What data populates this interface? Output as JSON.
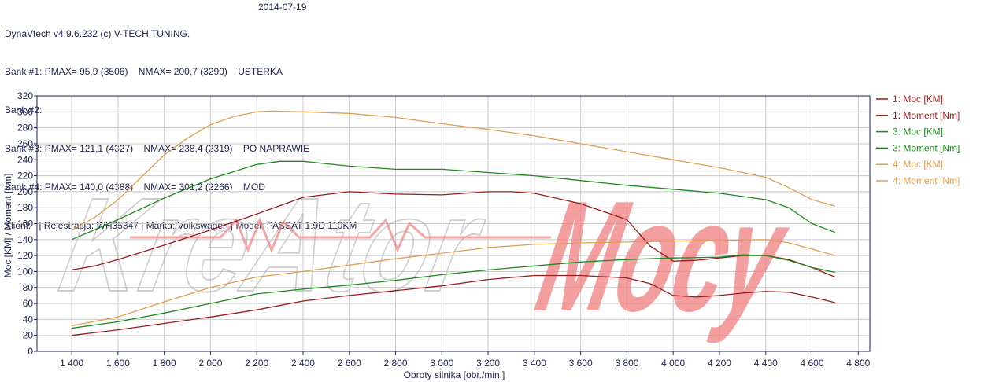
{
  "header": {
    "app": "DynaVtech v4.9.6.232 (c) V-TECH TUNING.",
    "date": "2014-07-19",
    "banks": [
      {
        "label": "Bank #1:",
        "pmax": "PMAX= 95,9 (3506)",
        "nmax": "NMAX= 200,7 (3290)",
        "note": "USTERKA"
      },
      {
        "label": "Bank #2:",
        "pmax": "",
        "nmax": "",
        "note": ""
      },
      {
        "label": "Bank #3:",
        "pmax": "PMAX= 121,1 (4327)",
        "nmax": "NMAX= 238,4 (2319)",
        "note": "PO NAPRAWIE"
      },
      {
        "label": "Bank #4:",
        "pmax": "PMAX= 140,0 (4388)",
        "nmax": "NMAX= 301,2 (2266)",
        "note": "MOD"
      }
    ],
    "client": "Klient:   | Rejestracja: WH35347 | Marka: Volkswagen | Model: PASSAT 1.9D 110KM"
  },
  "colors": {
    "bank1": "#9b1c1c",
    "bank3": "#1e8a1e",
    "bank4": "#e0a050",
    "grid": "#c8c8c8",
    "axis": "#1c2150",
    "watermark": "#f08080"
  },
  "watermark": "KreAtorMocy",
  "chart_data": {
    "type": "line",
    "xlabel": "Obroty silnika [obr./min.]",
    "ylabel": "Moc [KM] / Moment [Nm]",
    "xlim": [
      1250,
      4850
    ],
    "ylim": [
      0,
      320
    ],
    "xticks": [
      1400,
      1600,
      1800,
      2000,
      2200,
      2400,
      2600,
      2800,
      3000,
      3200,
      3400,
      3600,
      3800,
      4000,
      4200,
      4400,
      4600,
      4800
    ],
    "xtick_labels": [
      "1 400",
      "1 600",
      "1 800",
      "2 000",
      "2 200",
      "2 400",
      "2 600",
      "2 800",
      "3 000",
      "3 200",
      "3 400",
      "3 600",
      "3 800",
      "4 000",
      "4 200",
      "4 400",
      "4 600",
      "4 800"
    ],
    "yticks": [
      0,
      20,
      40,
      60,
      80,
      100,
      120,
      140,
      160,
      180,
      200,
      220,
      240,
      260,
      280,
      300,
      320
    ],
    "grid": true,
    "legend": "right",
    "series": [
      {
        "name": "1: Moc [KM]",
        "color": "#9b1c1c",
        "x": [
          1400,
          1600,
          1800,
          2000,
          2200,
          2400,
          2600,
          2800,
          3000,
          3200,
          3400,
          3600,
          3800,
          3900,
          4000,
          4100,
          4200,
          4300,
          4400,
          4500,
          4600,
          4700
        ],
        "y": [
          20,
          27,
          35,
          43,
          52,
          63,
          70,
          76,
          82,
          90,
          95,
          95,
          92,
          85,
          70,
          68,
          70,
          73,
          75,
          74,
          68,
          61
        ]
      },
      {
        "name": "1: Moment [Nm]",
        "color": "#9b1c1c",
        "x": [
          1400,
          1500,
          1600,
          1800,
          2000,
          2200,
          2400,
          2600,
          2800,
          3000,
          3200,
          3300,
          3400,
          3600,
          3700,
          3800,
          3900,
          4000,
          4100,
          4200,
          4300,
          4400,
          4500,
          4600,
          4700
        ],
        "y": [
          102,
          107,
          115,
          133,
          152,
          172,
          193,
          200,
          197,
          196,
          200,
          200,
          198,
          185,
          175,
          165,
          132,
          113,
          114,
          117,
          120,
          120,
          115,
          105,
          93
        ]
      },
      {
        "name": "3: Moc [KM]",
        "color": "#1e8a1e",
        "x": [
          1400,
          1600,
          1800,
          2000,
          2200,
          2400,
          2600,
          2800,
          3000,
          3200,
          3400,
          3600,
          3800,
          4000,
          4200,
          4300,
          4400,
          4500,
          4600,
          4700
        ],
        "y": [
          29,
          37,
          48,
          60,
          72,
          78,
          83,
          89,
          96,
          102,
          107,
          112,
          115,
          117,
          118,
          121,
          120,
          114,
          105,
          99
        ]
      },
      {
        "name": "3: Moment [Nm]",
        "color": "#1e8a1e",
        "x": [
          1400,
          1600,
          1800,
          2000,
          2200,
          2300,
          2400,
          2600,
          2800,
          3000,
          3200,
          3400,
          3600,
          3800,
          4000,
          4200,
          4400,
          4500,
          4600,
          4700
        ],
        "y": [
          140,
          165,
          192,
          216,
          234,
          238,
          238,
          232,
          228,
          228,
          224,
          220,
          214,
          208,
          203,
          198,
          190,
          180,
          160,
          149
        ]
      },
      {
        "name": "4: Moc [KM]",
        "color": "#e0a050",
        "x": [
          1400,
          1600,
          1800,
          2000,
          2200,
          2400,
          2600,
          2800,
          3000,
          3200,
          3400,
          3600,
          3800,
          4000,
          4200,
          4400,
          4500,
          4600,
          4700
        ],
        "y": [
          32,
          43,
          62,
          80,
          93,
          100,
          108,
          116,
          123,
          130,
          134,
          136,
          137,
          138,
          139,
          140,
          136,
          128,
          120
        ]
      },
      {
        "name": "4: Moment [Nm]",
        "color": "#e0a050",
        "x": [
          1400,
          1500,
          1600,
          1700,
          1800,
          1900,
          2000,
          2100,
          2200,
          2266,
          2400,
          2600,
          2800,
          3000,
          3200,
          3400,
          3600,
          3800,
          4000,
          4200,
          4400,
          4500,
          4600,
          4700
        ],
        "y": [
          152,
          168,
          190,
          218,
          246,
          267,
          284,
          294,
          300,
          301,
          300,
          298,
          293,
          285,
          278,
          270,
          260,
          250,
          240,
          230,
          218,
          205,
          190,
          182
        ]
      }
    ]
  }
}
